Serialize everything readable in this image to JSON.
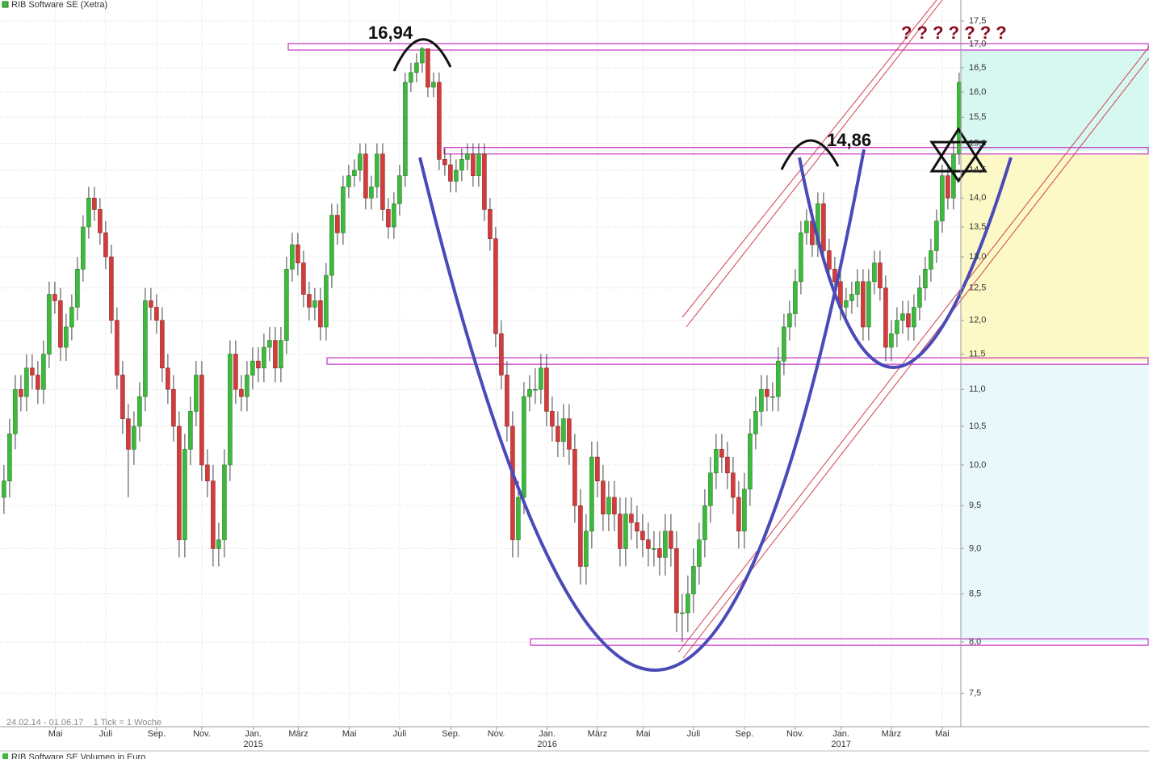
{
  "chart_data": {
    "type": "candlestick",
    "title": "RIB Software SE (Xetra)",
    "period_note": "24.02.14 - 01.06.17    1 Tick = 1 Woche",
    "lower_panel_title": "RIB Software SE Volumen in Euro",
    "annotations": [
      "16,94",
      "14,86",
      "? ? ? ? ? ? ?"
    ],
    "log_scale": true,
    "grid": true,
    "ylim": [
      7.19,
      17.97
    ],
    "yticks": [
      {
        "value": 7.5,
        "label": "7,5"
      },
      {
        "value": 8,
        "label": "8,0"
      },
      {
        "value": 8.5,
        "label": "8,5"
      },
      {
        "value": 9,
        "label": "9,0"
      },
      {
        "value": 9.5,
        "label": "9,5"
      },
      {
        "value": 10,
        "label": "10,0"
      },
      {
        "value": 10.5,
        "label": "10,5"
      },
      {
        "value": 11,
        "label": "11,0"
      },
      {
        "value": 11.5,
        "label": "11,5"
      },
      {
        "value": 12,
        "label": "12,0"
      },
      {
        "value": 12.5,
        "label": "12,5"
      },
      {
        "value": 13,
        "label": "13,0"
      },
      {
        "value": 13.5,
        "label": "13,5"
      },
      {
        "value": 14,
        "label": "14,0"
      },
      {
        "value": 14.5,
        "label": "14,5"
      },
      {
        "value": 15,
        "label": "15,0"
      },
      {
        "value": 15.5,
        "label": "15,5"
      },
      {
        "value": 16,
        "label": "16,0"
      },
      {
        "value": 16.5,
        "label": "16,5"
      },
      {
        "value": 17,
        "label": "17,0"
      },
      {
        "value": 17.5,
        "label": "17,5"
      }
    ],
    "xlim": [
      -0.7,
      169.3
    ],
    "xticks": [
      {
        "value": 9.1,
        "label": "Mai"
      },
      {
        "value": 18,
        "label": "Juli"
      },
      {
        "value": 27,
        "label": "Sep."
      },
      {
        "value": 35,
        "label": "Nov."
      },
      {
        "value": 44.1,
        "label": "Jan."
      },
      {
        "value": 52.1,
        "label": "März"
      },
      {
        "value": 61.1,
        "label": "Mai"
      },
      {
        "value": 70,
        "label": "Juli"
      },
      {
        "value": 79.1,
        "label": "Sep."
      },
      {
        "value": 87.1,
        "label": "Nov."
      },
      {
        "value": 96.1,
        "label": "Jan."
      },
      {
        "value": 105,
        "label": "März"
      },
      {
        "value": 113.1,
        "label": "Mai"
      },
      {
        "value": 122,
        "label": "Juli"
      },
      {
        "value": 131,
        "label": "Sep."
      },
      {
        "value": 140,
        "label": "Nov."
      },
      {
        "value": 148.1,
        "label": "Jan."
      },
      {
        "value": 157,
        "label": "März"
      },
      {
        "value": 166,
        "label": "Mai"
      }
    ],
    "year_ticks": [
      {
        "value": 44.1,
        "label": "2015"
      },
      {
        "value": 96.1,
        "label": "2016"
      },
      {
        "value": 148.1,
        "label": "2017"
      }
    ],
    "levels": [
      16.94,
      14.86,
      11.4,
      8.0
    ],
    "up_color": "#3cba3c",
    "down_color": "#d43c3c",
    "ohlc": [
      [
        9.6,
        10.0,
        9.4,
        9.8
      ],
      [
        9.8,
        10.6,
        9.6,
        10.4
      ],
      [
        10.4,
        11.2,
        10.2,
        11.0
      ],
      [
        11.0,
        11.2,
        10.7,
        10.9
      ],
      [
        10.9,
        11.5,
        10.7,
        11.3
      ],
      [
        11.3,
        11.5,
        11.0,
        11.2
      ],
      [
        11.2,
        11.4,
        10.8,
        11.0
      ],
      [
        11.0,
        11.7,
        10.8,
        11.5
      ],
      [
        11.5,
        12.6,
        11.3,
        12.4
      ],
      [
        12.4,
        12.6,
        12.1,
        12.3
      ],
      [
        12.3,
        12.5,
        11.4,
        11.6
      ],
      [
        11.6,
        12.1,
        11.4,
        11.9
      ],
      [
        11.9,
        12.4,
        11.7,
        12.2
      ],
      [
        12.2,
        13.0,
        12.0,
        12.8
      ],
      [
        12.8,
        13.7,
        12.6,
        13.5
      ],
      [
        13.5,
        14.2,
        13.3,
        14.0
      ],
      [
        14.0,
        14.2,
        13.6,
        13.8
      ],
      [
        13.8,
        14.0,
        13.2,
        13.4
      ],
      [
        13.4,
        13.6,
        12.8,
        13.0
      ],
      [
        13.0,
        13.2,
        11.8,
        12.0
      ],
      [
        12.0,
        12.2,
        11.0,
        11.2
      ],
      [
        11.2,
        11.4,
        10.4,
        10.6
      ],
      [
        10.6,
        10.8,
        9.6,
        10.2
      ],
      [
        10.2,
        10.7,
        10.0,
        10.5
      ],
      [
        10.5,
        11.1,
        10.3,
        10.9
      ],
      [
        10.9,
        12.5,
        10.7,
        12.3
      ],
      [
        12.3,
        12.5,
        12.0,
        12.2
      ],
      [
        12.2,
        12.4,
        11.8,
        12.0
      ],
      [
        12.0,
        12.2,
        11.1,
        11.3
      ],
      [
        11.3,
        11.5,
        10.8,
        11.0
      ],
      [
        11.0,
        11.2,
        10.3,
        10.5
      ],
      [
        10.5,
        10.7,
        8.9,
        9.1
      ],
      [
        9.1,
        10.4,
        8.9,
        10.2
      ],
      [
        10.2,
        10.9,
        10.0,
        10.7
      ],
      [
        10.7,
        11.4,
        10.5,
        11.2
      ],
      [
        11.2,
        11.4,
        9.8,
        10.0
      ],
      [
        10.0,
        10.2,
        9.6,
        9.8
      ],
      [
        9.8,
        10.0,
        8.8,
        9.0
      ],
      [
        9.0,
        9.3,
        8.8,
        9.1
      ],
      [
        9.1,
        10.2,
        8.9,
        10.0
      ],
      [
        10.0,
        11.7,
        9.8,
        11.5
      ],
      [
        11.5,
        11.7,
        10.8,
        11.0
      ],
      [
        11.0,
        11.2,
        10.7,
        10.9
      ],
      [
        10.9,
        11.4,
        10.7,
        11.2
      ],
      [
        11.2,
        11.6,
        11.0,
        11.4
      ],
      [
        11.4,
        11.6,
        11.1,
        11.3
      ],
      [
        11.3,
        11.8,
        11.1,
        11.6
      ],
      [
        11.6,
        11.9,
        11.4,
        11.7
      ],
      [
        11.7,
        11.9,
        11.1,
        11.3
      ],
      [
        11.3,
        11.9,
        11.1,
        11.7
      ],
      [
        11.7,
        13.0,
        11.5,
        12.8
      ],
      [
        12.8,
        13.4,
        12.6,
        13.2
      ],
      [
        13.2,
        13.4,
        12.7,
        12.9
      ],
      [
        12.9,
        13.1,
        12.2,
        12.4
      ],
      [
        12.4,
        12.6,
        12.0,
        12.2
      ],
      [
        12.2,
        12.5,
        12.0,
        12.3
      ],
      [
        12.3,
        12.5,
        11.7,
        11.9
      ],
      [
        11.9,
        12.9,
        11.7,
        12.7
      ],
      [
        12.7,
        13.9,
        12.5,
        13.7
      ],
      [
        13.7,
        13.9,
        13.2,
        13.4
      ],
      [
        13.4,
        14.4,
        13.2,
        14.2
      ],
      [
        14.2,
        14.6,
        14.0,
        14.4
      ],
      [
        14.4,
        14.7,
        14.2,
        14.5
      ],
      [
        14.5,
        15.0,
        14.3,
        14.8
      ],
      [
        14.8,
        15.0,
        13.8,
        14.0
      ],
      [
        14.0,
        14.4,
        13.8,
        14.2
      ],
      [
        14.2,
        15.0,
        14.0,
        14.8
      ],
      [
        14.8,
        15.0,
        13.6,
        13.8
      ],
      [
        13.8,
        14.0,
        13.3,
        13.5
      ],
      [
        13.5,
        14.1,
        13.3,
        13.9
      ],
      [
        13.9,
        14.6,
        13.7,
        14.4
      ],
      [
        14.4,
        16.4,
        14.2,
        16.2
      ],
      [
        16.2,
        16.6,
        16.0,
        16.4
      ],
      [
        16.4,
        16.8,
        16.2,
        16.6
      ],
      [
        16.6,
        16.94,
        16.4,
        16.9
      ],
      [
        16.9,
        16.9,
        15.9,
        16.1
      ],
      [
        16.1,
        16.4,
        15.9,
        16.2
      ],
      [
        16.2,
        16.4,
        14.5,
        14.7
      ],
      [
        14.7,
        14.9,
        14.4,
        14.6
      ],
      [
        14.6,
        14.8,
        14.1,
        14.3
      ],
      [
        14.3,
        14.7,
        14.1,
        14.5
      ],
      [
        14.5,
        14.9,
        14.3,
        14.7
      ],
      [
        14.7,
        15.0,
        14.5,
        14.8
      ],
      [
        14.8,
        15.0,
        14.2,
        14.4
      ],
      [
        14.4,
        15.0,
        14.2,
        14.8
      ],
      [
        14.8,
        15.0,
        13.6,
        13.8
      ],
      [
        13.8,
        14.0,
        13.1,
        13.3
      ],
      [
        13.3,
        13.5,
        11.6,
        11.8
      ],
      [
        11.8,
        12.0,
        11.0,
        11.2
      ],
      [
        11.2,
        11.4,
        10.3,
        10.5
      ],
      [
        10.5,
        10.7,
        8.9,
        9.1
      ],
      [
        9.1,
        9.8,
        8.9,
        9.6
      ],
      [
        9.6,
        11.1,
        9.4,
        10.9
      ],
      [
        10.9,
        11.2,
        10.7,
        11.0
      ],
      [
        11.0,
        11.3,
        10.8,
        11.0
      ],
      [
        11.0,
        11.5,
        10.8,
        11.3
      ],
      [
        11.3,
        11.5,
        10.5,
        10.7
      ],
      [
        10.7,
        10.9,
        10.3,
        10.5
      ],
      [
        10.5,
        10.7,
        10.1,
        10.3
      ],
      [
        10.3,
        10.8,
        10.1,
        10.6
      ],
      [
        10.6,
        10.8,
        10.0,
        10.2
      ],
      [
        10.2,
        10.4,
        9.3,
        9.5
      ],
      [
        9.5,
        9.7,
        8.6,
        8.8
      ],
      [
        8.8,
        9.4,
        8.6,
        9.2
      ],
      [
        9.2,
        10.3,
        9.0,
        10.1
      ],
      [
        10.1,
        10.3,
        9.6,
        9.8
      ],
      [
        9.8,
        10.0,
        9.2,
        9.4
      ],
      [
        9.4,
        9.8,
        9.2,
        9.6
      ],
      [
        9.6,
        9.8,
        9.2,
        9.4
      ],
      [
        9.4,
        9.6,
        8.8,
        9.0
      ],
      [
        9.0,
        9.6,
        8.8,
        9.4
      ],
      [
        9.4,
        9.6,
        9.1,
        9.3
      ],
      [
        9.3,
        9.5,
        9.0,
        9.2
      ],
      [
        9.2,
        9.4,
        8.9,
        9.1
      ],
      [
        9.1,
        9.3,
        8.8,
        9.0
      ],
      [
        9.0,
        9.2,
        8.8,
        9.0
      ],
      [
        9.0,
        9.2,
        8.7,
        8.9
      ],
      [
        8.9,
        9.4,
        8.7,
        9.2
      ],
      [
        9.2,
        9.4,
        8.8,
        9.0
      ],
      [
        9.0,
        9.2,
        8.1,
        8.3
      ],
      [
        8.3,
        8.5,
        8.0,
        8.3
      ],
      [
        8.3,
        8.7,
        8.1,
        8.5
      ],
      [
        8.5,
        9.0,
        8.3,
        8.8
      ],
      [
        8.8,
        9.3,
        8.6,
        9.1
      ],
      [
        9.1,
        9.7,
        8.9,
        9.5
      ],
      [
        9.5,
        10.1,
        9.3,
        9.9
      ],
      [
        9.9,
        10.4,
        9.7,
        10.2
      ],
      [
        10.2,
        10.4,
        9.9,
        10.1
      ],
      [
        10.1,
        10.3,
        9.7,
        9.9
      ],
      [
        9.9,
        10.1,
        9.4,
        9.6
      ],
      [
        9.6,
        9.8,
        9.0,
        9.2
      ],
      [
        9.2,
        9.9,
        9.0,
        9.7
      ],
      [
        9.7,
        10.6,
        9.5,
        10.4
      ],
      [
        10.4,
        10.9,
        10.2,
        10.7
      ],
      [
        10.7,
        11.2,
        10.5,
        11.0
      ],
      [
        11.0,
        11.2,
        10.7,
        10.9
      ],
      [
        10.9,
        11.1,
        10.7,
        10.9
      ],
      [
        10.9,
        11.6,
        10.7,
        11.4
      ],
      [
        11.4,
        12.1,
        11.2,
        11.9
      ],
      [
        11.9,
        12.3,
        11.7,
        12.1
      ],
      [
        12.1,
        12.8,
        11.9,
        12.6
      ],
      [
        12.6,
        13.6,
        12.4,
        13.4
      ],
      [
        13.4,
        13.8,
        13.2,
        13.6
      ],
      [
        13.6,
        13.8,
        13.0,
        13.2
      ],
      [
        13.2,
        14.1,
        13.0,
        13.9
      ],
      [
        13.9,
        14.1,
        12.9,
        13.1
      ],
      [
        13.1,
        13.3,
        12.6,
        12.8
      ],
      [
        12.8,
        13.0,
        12.4,
        12.6
      ],
      [
        12.6,
        12.8,
        12.0,
        12.2
      ],
      [
        12.2,
        12.5,
        12.0,
        12.3
      ],
      [
        12.3,
        12.6,
        12.1,
        12.4
      ],
      [
        12.4,
        12.8,
        12.2,
        12.6
      ],
      [
        12.6,
        12.8,
        11.7,
        11.9
      ],
      [
        11.9,
        12.8,
        11.7,
        12.6
      ],
      [
        12.6,
        13.1,
        12.4,
        12.9
      ],
      [
        12.9,
        13.1,
        12.3,
        12.5
      ],
      [
        12.5,
        12.7,
        11.4,
        11.6
      ],
      [
        11.6,
        12.0,
        11.4,
        11.8
      ],
      [
        11.8,
        12.2,
        11.6,
        12.0
      ],
      [
        12.0,
        12.3,
        11.8,
        12.1
      ],
      [
        12.1,
        12.3,
        11.7,
        11.9
      ],
      [
        11.9,
        12.4,
        11.7,
        12.2
      ],
      [
        12.2,
        12.7,
        12.0,
        12.5
      ],
      [
        12.5,
        13.0,
        12.3,
        12.8
      ],
      [
        12.8,
        13.3,
        12.6,
        13.1
      ],
      [
        13.1,
        13.8,
        12.9,
        13.6
      ],
      [
        13.6,
        14.6,
        13.4,
        14.4
      ],
      [
        14.4,
        14.6,
        13.8,
        14.0
      ],
      [
        14.0,
        15.0,
        13.8,
        14.8
      ],
      [
        14.8,
        16.4,
        14.6,
        16.2
      ]
    ]
  }
}
